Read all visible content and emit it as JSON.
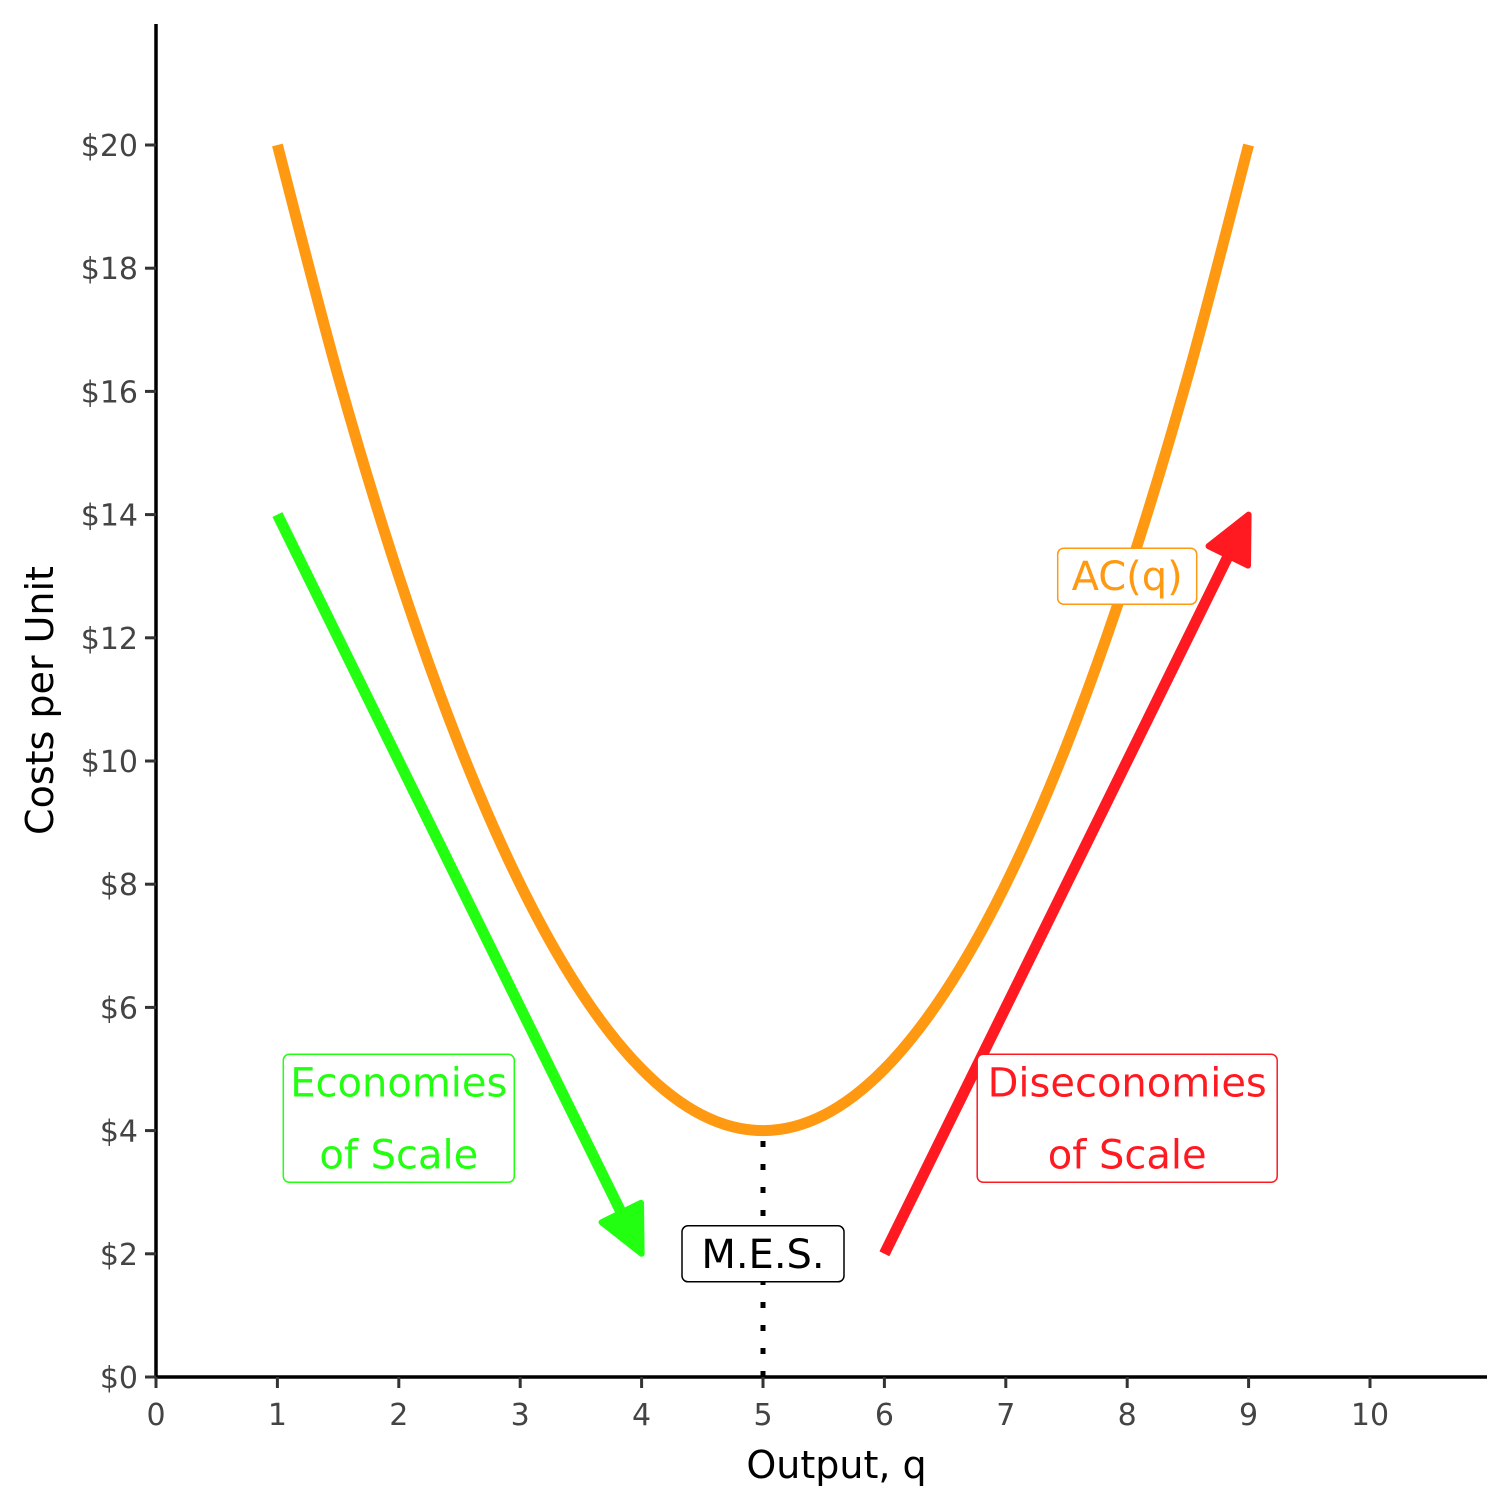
{
  "chart_data": {
    "type": "line",
    "xlabel": "Output, q",
    "ylabel": "Costs per Unit",
    "xlim": [
      0,
      11
    ],
    "ylim": [
      0,
      22
    ],
    "x_ticks": [
      0,
      1,
      2,
      3,
      4,
      5,
      6,
      7,
      8,
      9,
      10
    ],
    "x_tick_labels": [
      "0",
      "1",
      "2",
      "3",
      "4",
      "5",
      "6",
      "7",
      "8",
      "9",
      "10"
    ],
    "y_ticks": [
      0,
      2,
      4,
      6,
      8,
      10,
      12,
      14,
      16,
      18,
      20
    ],
    "y_tick_labels": [
      "$0",
      "$2",
      "$4",
      "$6",
      "$8",
      "$10",
      "$12",
      "$14",
      "$16",
      "$18",
      "$20"
    ],
    "grid": false,
    "series": [
      {
        "name": "AC(q)",
        "color": "#ff9912",
        "x": [
          1,
          1.5,
          2,
          2.5,
          3,
          3.5,
          4,
          4.5,
          5,
          5.5,
          6,
          6.5,
          7,
          7.5,
          8,
          8.5,
          9
        ],
        "y": [
          20,
          16.25,
          13,
          10.25,
          8,
          6.25,
          5,
          4.25,
          4,
          4.25,
          5,
          6.25,
          8,
          10.25,
          13,
          16.25,
          20
        ]
      }
    ],
    "arrows": [
      {
        "name": "economies",
        "from": [
          1,
          14
        ],
        "to": [
          4,
          2
        ],
        "color": "#22ff11"
      },
      {
        "name": "diseconomies",
        "from": [
          6,
          2
        ],
        "to": [
          9,
          14
        ],
        "color": "#ff1a22"
      }
    ],
    "reference_lines": [
      {
        "name": "mes-line",
        "x": 5,
        "from_y": 0,
        "to_y": 4,
        "style": "dotted",
        "color": "#000000"
      }
    ],
    "annotations": [
      {
        "name": "ac-label",
        "lines": [
          "AC(q)"
        ],
        "x": 8,
        "y": 13,
        "color": "#ff9912"
      },
      {
        "name": "economies-label",
        "lines": [
          "Economies",
          "of Scale"
        ],
        "x": 2,
        "y": 4.2,
        "color": "#22ff11"
      },
      {
        "name": "diseconomies-label",
        "lines": [
          "Diseconomies",
          "of Scale"
        ],
        "x": 8,
        "y": 4.2,
        "color": "#ff1a22"
      },
      {
        "name": "mes-label",
        "lines": [
          "M.E.S."
        ],
        "x": 5,
        "y": 2,
        "color": "#000000"
      }
    ]
  }
}
